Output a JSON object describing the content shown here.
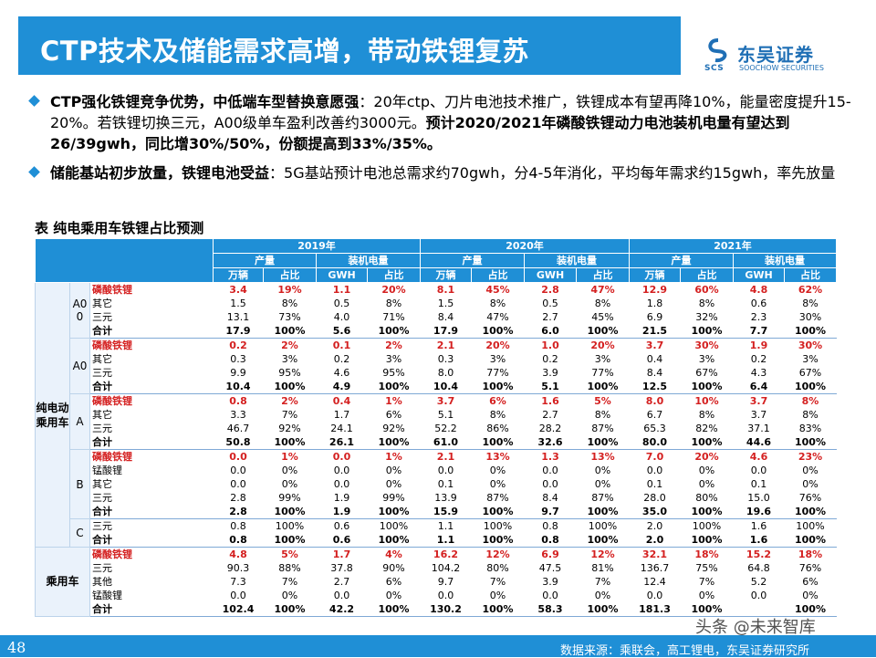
{
  "header": {
    "title": "CTP技术及储能需求高增，带动铁锂复苏",
    "logo_cn": "东吴证券",
    "logo_en": "SOOCHOW SECURITIES",
    "logo_mark": "SCS"
  },
  "bullets": [
    {
      "bold1": "CTP强化铁锂竞争优势，中低端车型替换意愿强",
      "text1": "：20年ctp、刀片电池技术推广，铁锂成本有望再降10%，能量密度提升15-20%。若铁锂切换三元，A00级单车盈利改善约3000元。",
      "bold2": "预计2020/2021年磷酸铁锂动力电池装机电量有望达到26/39gwh，同比增30%/50%，份额提高到33%/35%。"
    },
    {
      "bold1": "储能基站初步放量，铁锂电池受益",
      "text1": "：5G基站预计电池总需求约70gwh，分4-5年消化，平均每年需求约15gwh，率先放量"
    }
  ],
  "table": {
    "title": "表 纯电乘用车铁锂占比预测",
    "years": [
      "2019年",
      "2020年",
      "2021年"
    ],
    "metrics": [
      "产量",
      "装机电量"
    ],
    "subheaders": [
      "万辆",
      "占比",
      "GWH",
      "占比"
    ],
    "group1": "纯电动乘用车",
    "group2": "乘用车",
    "classes": [
      "A00",
      "A0",
      "A",
      "B",
      "C"
    ],
    "rows": [
      {
        "name": "磷酸铁锂",
        "red": true,
        "v": [
          "3.4",
          "19%",
          "1.1",
          "20%",
          "8.1",
          "45%",
          "2.8",
          "47%",
          "12.9",
          "60%",
          "4.8",
          "62%"
        ]
      },
      {
        "name": "其它",
        "v": [
          "1.5",
          "8%",
          "0.5",
          "8%",
          "1.5",
          "8%",
          "0.5",
          "8%",
          "1.8",
          "8%",
          "0.6",
          "8%"
        ]
      },
      {
        "name": "三元",
        "v": [
          "13.1",
          "73%",
          "4.0",
          "71%",
          "8.4",
          "47%",
          "2.7",
          "45%",
          "6.9",
          "32%",
          "2.3",
          "30%"
        ]
      },
      {
        "name": "合计",
        "sum": true,
        "v": [
          "17.9",
          "100%",
          "5.6",
          "100%",
          "17.9",
          "100%",
          "6.0",
          "100%",
          "21.5",
          "100%",
          "7.7",
          "100%"
        ]
      },
      {
        "name": "磷酸铁锂",
        "red": true,
        "v": [
          "0.2",
          "2%",
          "0.1",
          "2%",
          "2.1",
          "20%",
          "1.0",
          "20%",
          "3.7",
          "30%",
          "1.9",
          "30%"
        ]
      },
      {
        "name": "其它",
        "v": [
          "0.3",
          "3%",
          "0.2",
          "3%",
          "0.3",
          "3%",
          "0.2",
          "3%",
          "0.4",
          "3%",
          "0.2",
          "3%"
        ]
      },
      {
        "name": "三元",
        "v": [
          "9.9",
          "95%",
          "4.6",
          "95%",
          "8.0",
          "77%",
          "3.9",
          "77%",
          "8.4",
          "67%",
          "4.3",
          "67%"
        ]
      },
      {
        "name": "合计",
        "sum": true,
        "v": [
          "10.4",
          "100%",
          "4.9",
          "100%",
          "10.4",
          "100%",
          "5.1",
          "100%",
          "12.5",
          "100%",
          "6.4",
          "100%"
        ]
      },
      {
        "name": "磷酸铁锂",
        "red": true,
        "v": [
          "0.8",
          "2%",
          "0.4",
          "1%",
          "3.7",
          "6%",
          "1.6",
          "5%",
          "8.0",
          "10%",
          "3.7",
          "8%"
        ]
      },
      {
        "name": "其它",
        "v": [
          "3.3",
          "7%",
          "1.7",
          "6%",
          "5.1",
          "8%",
          "2.7",
          "8%",
          "6.7",
          "8%",
          "3.7",
          "8%"
        ]
      },
      {
        "name": "三元",
        "v": [
          "46.7",
          "92%",
          "24.1",
          "92%",
          "52.2",
          "86%",
          "28.2",
          "87%",
          "65.3",
          "82%",
          "37.1",
          "83%"
        ]
      },
      {
        "name": "合计",
        "sum": true,
        "v": [
          "50.8",
          "100%",
          "26.1",
          "100%",
          "61.0",
          "100%",
          "32.6",
          "100%",
          "80.0",
          "100%",
          "44.6",
          "100%"
        ]
      },
      {
        "name": "磷酸铁锂",
        "red": true,
        "v": [
          "0.0",
          "1%",
          "0.0",
          "1%",
          "2.1",
          "13%",
          "1.3",
          "13%",
          "7.0",
          "20%",
          "4.6",
          "23%"
        ]
      },
      {
        "name": "锰酸锂",
        "v": [
          "0.0",
          "0%",
          "0.0",
          "0%",
          "0.0",
          "0%",
          "0.0",
          "0%",
          "0.0",
          "0%",
          "0.0",
          "0%"
        ]
      },
      {
        "name": "其它",
        "v": [
          "0.0",
          "0%",
          "0.0",
          "0%",
          "0.1",
          "0%",
          "0.0",
          "0%",
          "0.1",
          "0%",
          "0.1",
          "0%"
        ]
      },
      {
        "name": "三元",
        "v": [
          "2.8",
          "99%",
          "1.9",
          "99%",
          "13.9",
          "87%",
          "8.4",
          "87%",
          "28.0",
          "80%",
          "15.0",
          "76%"
        ]
      },
      {
        "name": "合计",
        "sum": true,
        "v": [
          "2.8",
          "100%",
          "1.9",
          "100%",
          "15.9",
          "100%",
          "9.7",
          "100%",
          "35.0",
          "100%",
          "19.6",
          "100%"
        ]
      },
      {
        "name": "三元",
        "v": [
          "0.8",
          "100%",
          "0.6",
          "100%",
          "1.1",
          "100%",
          "0.8",
          "100%",
          "2.0",
          "100%",
          "1.6",
          "100%"
        ]
      },
      {
        "name": "合计",
        "sum": true,
        "v": [
          "0.8",
          "100%",
          "0.6",
          "100%",
          "1.1",
          "100%",
          "0.8",
          "100%",
          "2.0",
          "100%",
          "1.6",
          "100%"
        ]
      },
      {
        "name": "磷酸铁锂",
        "red": true,
        "v": [
          "4.8",
          "5%",
          "1.7",
          "4%",
          "16.2",
          "12%",
          "6.9",
          "12%",
          "32.1",
          "18%",
          "15.2",
          "18%"
        ]
      },
      {
        "name": "三元",
        "v": [
          "90.3",
          "88%",
          "37.8",
          "90%",
          "104.2",
          "80%",
          "47.5",
          "81%",
          "136.7",
          "75%",
          "64.8",
          "76%"
        ]
      },
      {
        "name": "其他",
        "v": [
          "7.3",
          "7%",
          "2.7",
          "6%",
          "9.7",
          "7%",
          "3.9",
          "7%",
          "12.4",
          "7%",
          "5.2",
          "6%"
        ]
      },
      {
        "name": "锰酸锂",
        "v": [
          "0.0",
          "0%",
          "0.0",
          "0%",
          "0.0",
          "0%",
          "0.0",
          "0%",
          "0.0",
          "0%",
          "0.0",
          "0%"
        ]
      },
      {
        "name": "合计",
        "sum": true,
        "v": [
          "102.4",
          "100%",
          "42.2",
          "100%",
          "130.2",
          "100%",
          "58.3",
          "100%",
          "181.3",
          "100%",
          "",
          "100%"
        ]
      }
    ]
  },
  "footer": {
    "page_number": "48",
    "source": "数据来源：乘联会，高工锂电，东吴证券研究所",
    "watermark": "头条 @未来智库"
  },
  "colors": {
    "accent": "#1f8fd6",
    "highlight": "#d42020",
    "label_bg": "#eaf2fb"
  }
}
